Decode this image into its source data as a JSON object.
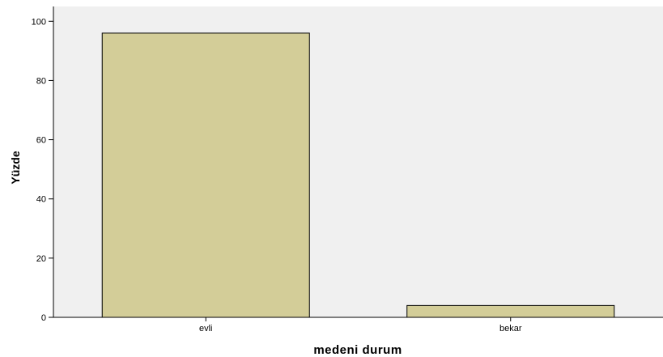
{
  "chart_data": {
    "type": "bar",
    "categories": [
      "evli",
      "bekar"
    ],
    "values": [
      96,
      4
    ],
    "xlabel": "medeni durum",
    "ylabel": "Yüzde",
    "ylim": [
      0,
      105
    ],
    "yticks": [
      "0",
      "20",
      "40",
      "60",
      "80",
      "100"
    ],
    "grid": false,
    "colors": {
      "bar_fill": "#d3cd98",
      "plot_background": "#f0f0f0"
    }
  }
}
